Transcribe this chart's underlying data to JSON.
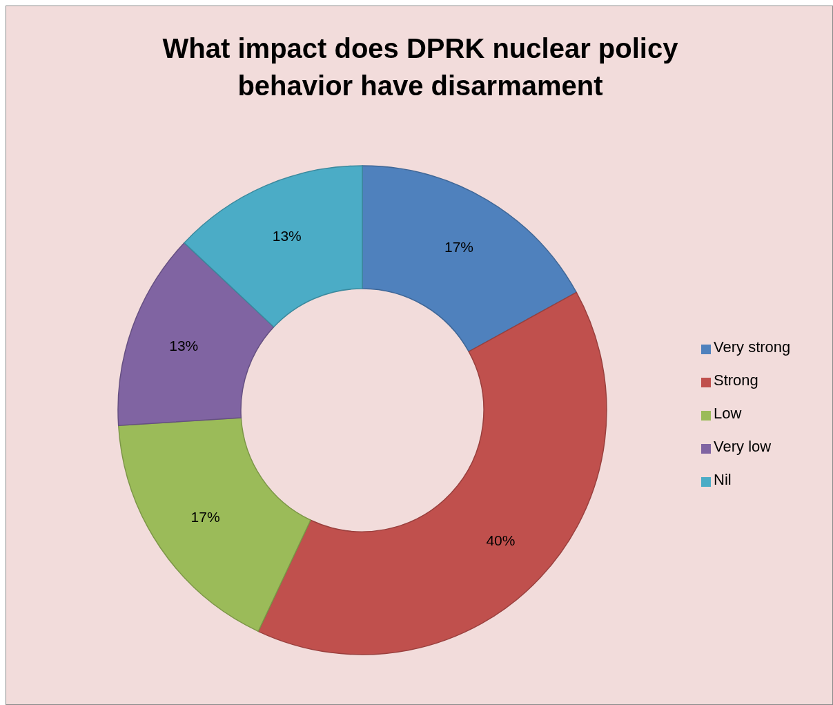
{
  "chart_data": {
    "type": "donut",
    "title": "What impact does DPRK nuclear policy behavior have disarmament",
    "categories": [
      "Very strong",
      "Strong",
      "Low",
      "Very low",
      "Nil"
    ],
    "values": [
      17,
      40,
      17,
      13,
      13
    ],
    "value_labels": [
      "17%",
      "40%",
      "17%",
      "13%",
      "13%"
    ],
    "colors": [
      "#4f81bd",
      "#c0504d",
      "#9bbb59",
      "#8064a2",
      "#4bacc6"
    ],
    "legend": "right"
  }
}
